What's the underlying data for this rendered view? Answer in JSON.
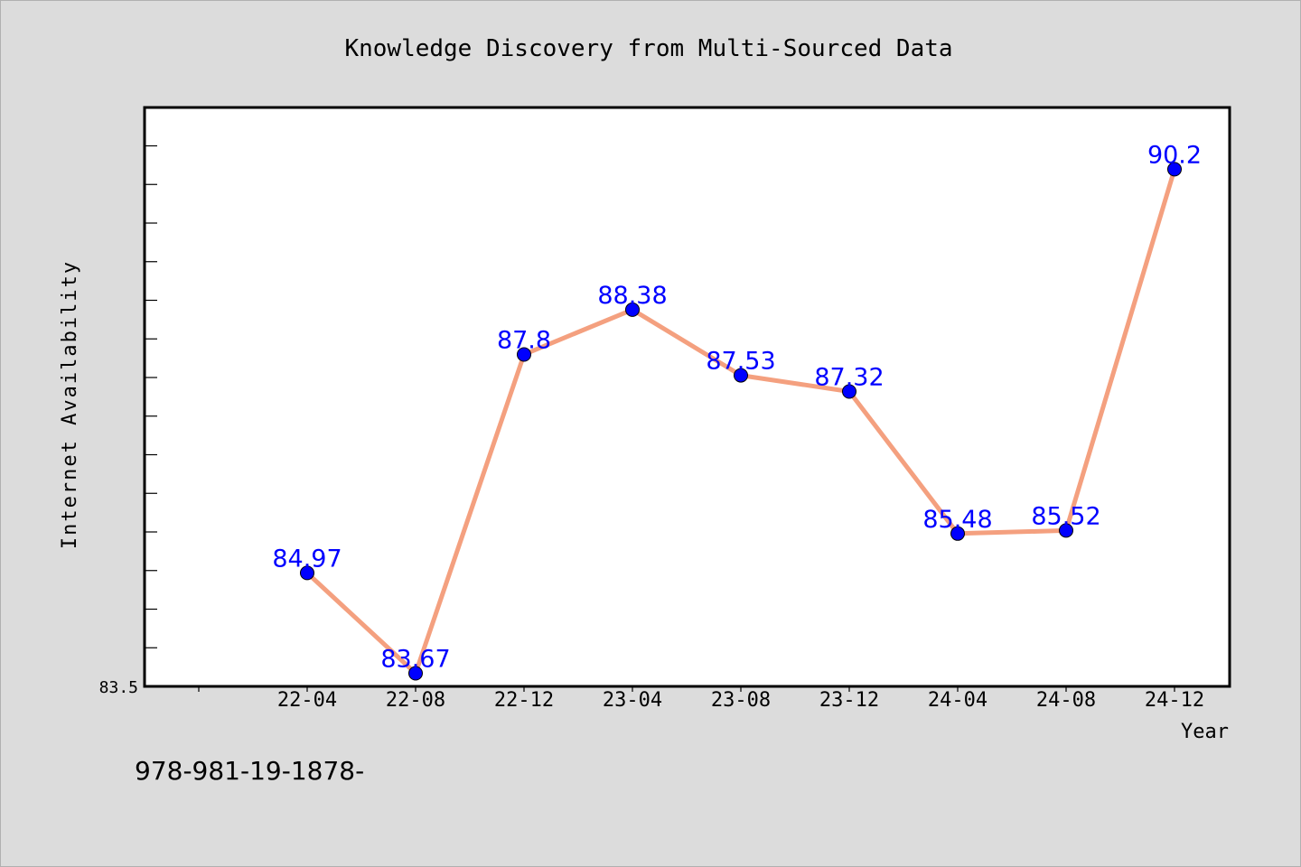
{
  "chart_data": {
    "type": "line",
    "title": "Knowledge Discovery from Multi-Sourced Data",
    "xlabel": "Year",
    "ylabel": "Internet Availability",
    "categories": [
      "22-04",
      "22-08",
      "22-12",
      "23-04",
      "23-08",
      "23-12",
      "24-04",
      "24-08",
      "24-12"
    ],
    "series": [
      {
        "values": [
          84.97,
          83.67,
          87.8,
          88.38,
          87.53,
          87.32,
          85.48,
          85.52,
          90.2
        ],
        "labels": [
          "84.97",
          "83.67",
          "87.8",
          "88.38",
          "87.53",
          "87.32",
          "85.48",
          "85.52",
          "90.2"
        ]
      }
    ],
    "ylim": [
      83.5,
      91.0
    ],
    "y_tick_label": "83.5",
    "grid": false,
    "colors": {
      "line": "#f4a07f",
      "marker": "#0000ff",
      "data_label": "#0000ff",
      "plot_background": "#ffffff",
      "page_background": "#dcdcdc"
    }
  },
  "footer": {
    "code_text": "978-981-19-1878-"
  }
}
